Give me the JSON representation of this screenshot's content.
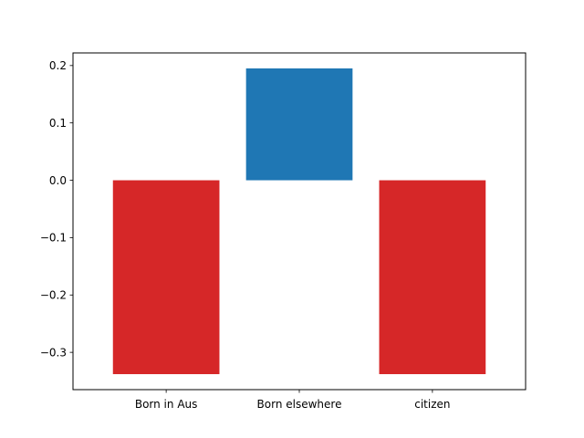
{
  "chart_data": {
    "type": "bar",
    "title": "",
    "xlabel": "",
    "ylabel": "",
    "categories": [
      "Born in Aus",
      "Born elsewhere",
      "citizen"
    ],
    "values": [
      -0.338,
      0.195,
      -0.338
    ],
    "bar_colors": [
      "#d62728",
      "#1f77b4",
      "#d62728"
    ],
    "ylim": [
      -0.365,
      0.222
    ],
    "yticks": [
      0.2,
      0.1,
      0.0,
      -0.1,
      -0.2,
      -0.3
    ],
    "ytick_labels": [
      "0.2",
      "0.1",
      "0.0",
      "−0.1",
      "−0.2",
      "−0.3"
    ],
    "grid": false,
    "legend": false
  }
}
